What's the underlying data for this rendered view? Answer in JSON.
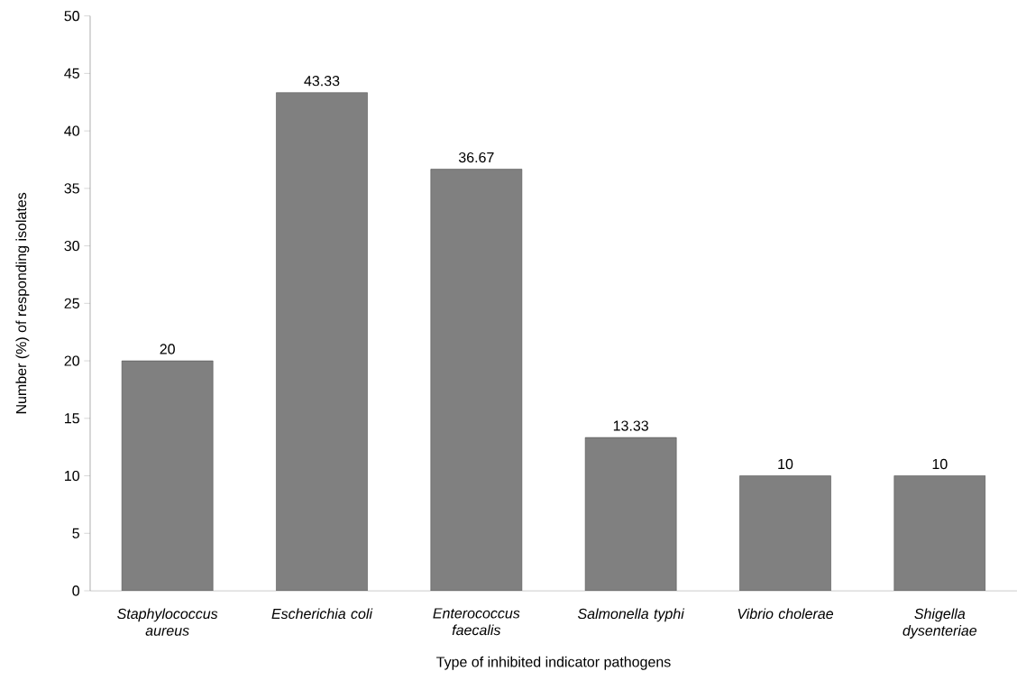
{
  "chart_data": {
    "type": "bar",
    "xlabel": "Type of inhibited indicator pathogens",
    "ylabel": "Number (%) of responding isolates",
    "categories": [
      "Staphylococcus aureus",
      "Escherichia coli",
      "Enterococcus faecalis",
      "Salmonella typhi",
      "Vibrio cholerae",
      "Shigella dysenteriae"
    ],
    "values": [
      20,
      43.33,
      36.67,
      13.33,
      10,
      10
    ],
    "color": "#808080",
    "ylim": [
      0,
      50
    ],
    "yticks": [
      0,
      5,
      10,
      15,
      20,
      25,
      30,
      35,
      40,
      45,
      50
    ],
    "data_labels": true
  }
}
